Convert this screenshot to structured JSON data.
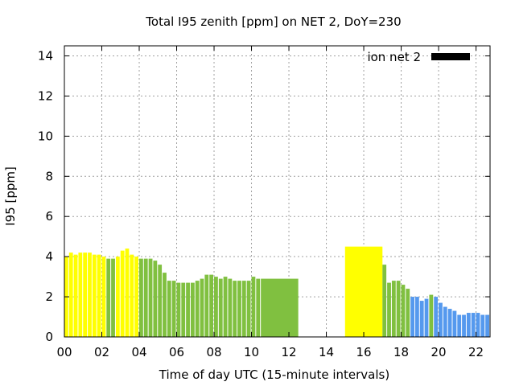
{
  "chart_data": {
    "type": "bar",
    "title": "Total I95 zenith [ppm] on NET 2, DoY=230",
    "xlabel": "Time of day UTC (15-minute intervals)",
    "ylabel": "I95 [ppm]",
    "xlim": [
      0,
      22.75
    ],
    "ylim": [
      0,
      14.5
    ],
    "grid": true,
    "legend": {
      "position": "top-right",
      "entries": [
        {
          "name": "ion net 2",
          "color": "#000000"
        }
      ]
    },
    "x_ticks": [
      {
        "value": 0,
        "label": "00"
      },
      {
        "value": 2,
        "label": "02"
      },
      {
        "value": 4,
        "label": "04"
      },
      {
        "value": 6,
        "label": "06"
      },
      {
        "value": 8,
        "label": "08"
      },
      {
        "value": 10,
        "label": "10"
      },
      {
        "value": 12,
        "label": "12"
      },
      {
        "value": 14,
        "label": "14"
      },
      {
        "value": 16,
        "label": "16"
      },
      {
        "value": 18,
        "label": "18"
      },
      {
        "value": 20,
        "label": "20"
      },
      {
        "value": 22,
        "label": "22"
      }
    ],
    "y_ticks": [
      {
        "value": 0,
        "label": "0"
      },
      {
        "value": 2,
        "label": "2"
      },
      {
        "value": 4,
        "label": "4"
      },
      {
        "value": 6,
        "label": "6"
      },
      {
        "value": 8,
        "label": "8"
      },
      {
        "value": 10,
        "label": "10"
      },
      {
        "value": 12,
        "label": "12"
      },
      {
        "value": 14,
        "label": "14"
      }
    ],
    "colors": {
      "yellow": "#ffff00",
      "green": "#80c040",
      "blue": "#5599ee"
    },
    "bars": [
      {
        "start": 0.0,
        "end": 0.25,
        "value": 4.0,
        "color": "yellow"
      },
      {
        "start": 0.25,
        "end": 0.5,
        "value": 4.2,
        "color": "yellow"
      },
      {
        "start": 0.5,
        "end": 0.75,
        "value": 4.1,
        "color": "yellow"
      },
      {
        "start": 0.75,
        "end": 1.0,
        "value": 4.2,
        "color": "yellow"
      },
      {
        "start": 1.0,
        "end": 1.25,
        "value": 4.2,
        "color": "yellow"
      },
      {
        "start": 1.25,
        "end": 1.5,
        "value": 4.2,
        "color": "yellow"
      },
      {
        "start": 1.5,
        "end": 1.75,
        "value": 4.1,
        "color": "yellow"
      },
      {
        "start": 1.75,
        "end": 2.0,
        "value": 4.1,
        "color": "yellow"
      },
      {
        "start": 2.0,
        "end": 2.25,
        "value": 4.0,
        "color": "yellow"
      },
      {
        "start": 2.25,
        "end": 2.5,
        "value": 3.9,
        "color": "green"
      },
      {
        "start": 2.5,
        "end": 2.75,
        "value": 3.9,
        "color": "green"
      },
      {
        "start": 2.75,
        "end": 3.0,
        "value": 4.0,
        "color": "yellow"
      },
      {
        "start": 3.0,
        "end": 3.25,
        "value": 4.3,
        "color": "yellow"
      },
      {
        "start": 3.25,
        "end": 3.5,
        "value": 4.4,
        "color": "yellow"
      },
      {
        "start": 3.5,
        "end": 3.75,
        "value": 4.1,
        "color": "yellow"
      },
      {
        "start": 3.75,
        "end": 4.0,
        "value": 4.0,
        "color": "yellow"
      },
      {
        "start": 4.0,
        "end": 4.25,
        "value": 3.9,
        "color": "green"
      },
      {
        "start": 4.25,
        "end": 4.5,
        "value": 3.9,
        "color": "green"
      },
      {
        "start": 4.5,
        "end": 4.75,
        "value": 3.9,
        "color": "green"
      },
      {
        "start": 4.75,
        "end": 5.0,
        "value": 3.8,
        "color": "green"
      },
      {
        "start": 5.0,
        "end": 5.25,
        "value": 3.6,
        "color": "green"
      },
      {
        "start": 5.25,
        "end": 5.5,
        "value": 3.2,
        "color": "green"
      },
      {
        "start": 5.5,
        "end": 5.75,
        "value": 2.8,
        "color": "green"
      },
      {
        "start": 5.75,
        "end": 6.0,
        "value": 2.8,
        "color": "green"
      },
      {
        "start": 6.0,
        "end": 6.25,
        "value": 2.7,
        "color": "green"
      },
      {
        "start": 6.25,
        "end": 6.5,
        "value": 2.7,
        "color": "green"
      },
      {
        "start": 6.5,
        "end": 6.75,
        "value": 2.7,
        "color": "green"
      },
      {
        "start": 6.75,
        "end": 7.0,
        "value": 2.7,
        "color": "green"
      },
      {
        "start": 7.0,
        "end": 7.25,
        "value": 2.8,
        "color": "green"
      },
      {
        "start": 7.25,
        "end": 7.5,
        "value": 2.9,
        "color": "green"
      },
      {
        "start": 7.5,
        "end": 7.75,
        "value": 3.1,
        "color": "green"
      },
      {
        "start": 7.75,
        "end": 8.0,
        "value": 3.1,
        "color": "green"
      },
      {
        "start": 8.0,
        "end": 8.25,
        "value": 3.0,
        "color": "green"
      },
      {
        "start": 8.25,
        "end": 8.5,
        "value": 2.9,
        "color": "green"
      },
      {
        "start": 8.5,
        "end": 8.75,
        "value": 3.0,
        "color": "green"
      },
      {
        "start": 8.75,
        "end": 9.0,
        "value": 2.9,
        "color": "green"
      },
      {
        "start": 9.0,
        "end": 9.25,
        "value": 2.8,
        "color": "green"
      },
      {
        "start": 9.25,
        "end": 9.5,
        "value": 2.8,
        "color": "green"
      },
      {
        "start": 9.5,
        "end": 9.75,
        "value": 2.8,
        "color": "green"
      },
      {
        "start": 9.75,
        "end": 10.0,
        "value": 2.8,
        "color": "green"
      },
      {
        "start": 10.0,
        "end": 10.25,
        "value": 3.0,
        "color": "green"
      },
      {
        "start": 10.25,
        "end": 10.5,
        "value": 2.9,
        "color": "green"
      },
      {
        "start": 10.5,
        "end": 12.5,
        "value": 2.9,
        "color": "green"
      },
      {
        "start": 15.0,
        "end": 17.0,
        "value": 4.5,
        "color": "yellow"
      },
      {
        "start": 17.0,
        "end": 17.25,
        "value": 3.6,
        "color": "green"
      },
      {
        "start": 17.25,
        "end": 17.5,
        "value": 2.7,
        "color": "green"
      },
      {
        "start": 17.5,
        "end": 17.75,
        "value": 2.8,
        "color": "green"
      },
      {
        "start": 17.75,
        "end": 18.0,
        "value": 2.8,
        "color": "green"
      },
      {
        "start": 18.0,
        "end": 18.25,
        "value": 2.6,
        "color": "green"
      },
      {
        "start": 18.25,
        "end": 18.5,
        "value": 2.4,
        "color": "green"
      },
      {
        "start": 18.5,
        "end": 18.75,
        "value": 2.0,
        "color": "blue"
      },
      {
        "start": 18.75,
        "end": 19.0,
        "value": 2.0,
        "color": "blue"
      },
      {
        "start": 19.0,
        "end": 19.25,
        "value": 1.8,
        "color": "blue"
      },
      {
        "start": 19.25,
        "end": 19.5,
        "value": 1.9,
        "color": "blue"
      },
      {
        "start": 19.5,
        "end": 19.75,
        "value": 2.1,
        "color": "green"
      },
      {
        "start": 19.75,
        "end": 20.0,
        "value": 2.0,
        "color": "blue"
      },
      {
        "start": 20.0,
        "end": 20.25,
        "value": 1.7,
        "color": "blue"
      },
      {
        "start": 20.25,
        "end": 20.5,
        "value": 1.5,
        "color": "blue"
      },
      {
        "start": 20.5,
        "end": 20.75,
        "value": 1.4,
        "color": "blue"
      },
      {
        "start": 20.75,
        "end": 21.0,
        "value": 1.3,
        "color": "blue"
      },
      {
        "start": 21.0,
        "end": 21.25,
        "value": 1.1,
        "color": "blue"
      },
      {
        "start": 21.25,
        "end": 21.5,
        "value": 1.1,
        "color": "blue"
      },
      {
        "start": 21.5,
        "end": 21.75,
        "value": 1.2,
        "color": "blue"
      },
      {
        "start": 21.75,
        "end": 22.0,
        "value": 1.2,
        "color": "blue"
      },
      {
        "start": 22.0,
        "end": 22.25,
        "value": 1.2,
        "color": "blue"
      },
      {
        "start": 22.25,
        "end": 22.5,
        "value": 1.1,
        "color": "blue"
      },
      {
        "start": 22.5,
        "end": 22.75,
        "value": 1.1,
        "color": "blue"
      }
    ]
  }
}
